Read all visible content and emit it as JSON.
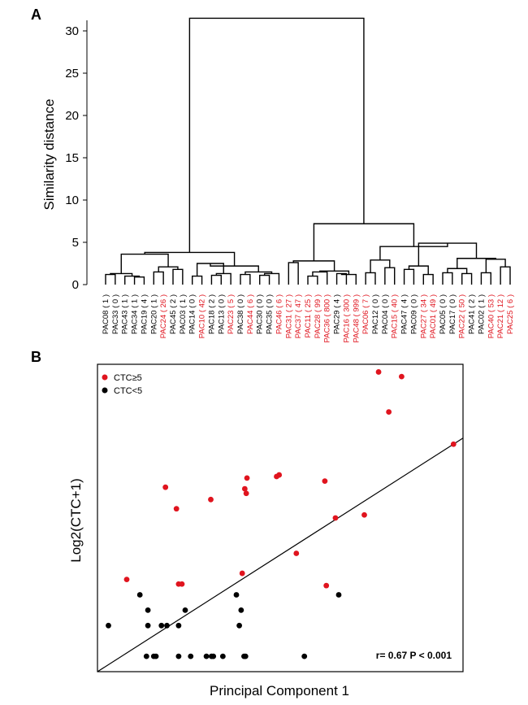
{
  "chart_data": [
    {
      "panel": "A",
      "type": "dendrogram",
      "ylabel": "Similarity distance",
      "ylim": [
        0,
        33
      ],
      "yticks": [
        0,
        5,
        10,
        15,
        20,
        25,
        30
      ],
      "colors": {
        "ctc_high": "#e0141e",
        "ctc_low": "#000000"
      },
      "leaves": [
        {
          "label": "PAC08 ( 1 )",
          "group": "low"
        },
        {
          "label": "PAC33 ( 0 )",
          "group": "low"
        },
        {
          "label": "PAC43 ( 1 )",
          "group": "low"
        },
        {
          "label": "PAC34 ( 1 )",
          "group": "low"
        },
        {
          "label": "PAC19 ( 4 )",
          "group": "low"
        },
        {
          "label": "PAC20 ( 1 )",
          "group": "low"
        },
        {
          "label": "PAC24 ( 26 )",
          "group": "high"
        },
        {
          "label": "PAC45 ( 2 )",
          "group": "low"
        },
        {
          "label": "PAC03 ( 1 )",
          "group": "low"
        },
        {
          "label": "PAC14 ( 0 )",
          "group": "low"
        },
        {
          "label": "PAC10 ( 42 )",
          "group": "high"
        },
        {
          "label": "PAC18 ( 2 )",
          "group": "low"
        },
        {
          "label": "PAC13 ( 0 )",
          "group": "low"
        },
        {
          "label": "PAC23 ( 5 )",
          "group": "high"
        },
        {
          "label": "PAC38 ( 0 )",
          "group": "low"
        },
        {
          "label": "PAC44 ( 6 )",
          "group": "high"
        },
        {
          "label": "PAC30 ( 0 )",
          "group": "low"
        },
        {
          "label": "PAC35 ( 0 )",
          "group": "low"
        },
        {
          "label": "PAC46 ( 6 )",
          "group": "high"
        },
        {
          "label": "PAC31 ( 27 )",
          "group": "high"
        },
        {
          "label": "PAC37 ( 47 )",
          "group": "high"
        },
        {
          "label": "PAC11 ( 25 )",
          "group": "high"
        },
        {
          "label": "PAC28 ( 99 )",
          "group": "high"
        },
        {
          "label": "PAC36 ( 800 )",
          "group": "high"
        },
        {
          "label": "PAC29 ( 4 )",
          "group": "low"
        },
        {
          "label": "PAC16 ( 300 )",
          "group": "high"
        },
        {
          "label": "PAC48 ( 999 )",
          "group": "high"
        },
        {
          "label": "PAC06 ( 7 )",
          "group": "high"
        },
        {
          "label": "PAC12 ( 0 )",
          "group": "low"
        },
        {
          "label": "PAC04 ( 0 )",
          "group": "low"
        },
        {
          "label": "PAC15 ( 40 )",
          "group": "high"
        },
        {
          "label": "PAC47 ( 4 )",
          "group": "low"
        },
        {
          "label": "PAC09 ( 0 )",
          "group": "low"
        },
        {
          "label": "PAC27 ( 34 )",
          "group": "high"
        },
        {
          "label": "PAC01 ( 49 )",
          "group": "high"
        },
        {
          "label": "PAC05 ( 0 )",
          "group": "low"
        },
        {
          "label": "PAC17 ( 0 )",
          "group": "low"
        },
        {
          "label": "PAC22 ( 50 )",
          "group": "high"
        },
        {
          "label": "PAC41 ( 2 )",
          "group": "low"
        },
        {
          "label": "PAC02 ( 1 )",
          "group": "low"
        },
        {
          "label": "PAC40 ( 53 )",
          "group": "high"
        },
        {
          "label": "PAC21 ( 12 )",
          "group": "high"
        },
        {
          "label": "PAC25 ( 6 )",
          "group": "high"
        }
      ],
      "merges": [
        {
          "a": "L0",
          "b": "L1",
          "h": 1.2
        },
        {
          "a": "L3",
          "b": "L4",
          "h": 0.9
        },
        {
          "a": "L2",
          "b": "M1",
          "h": 1.0
        },
        {
          "a": "M0",
          "b": "M2",
          "h": 1.3
        },
        {
          "a": "L5",
          "b": "L6",
          "h": 1.5
        },
        {
          "a": "L7",
          "b": "L8",
          "h": 1.8
        },
        {
          "a": "M4",
          "b": "M5",
          "h": 2.1
        },
        {
          "a": "M3",
          "b": "M6",
          "h": 3.6
        },
        {
          "a": "L9",
          "b": "L10",
          "h": 1.0
        },
        {
          "a": "L11",
          "b": "L12",
          "h": 1.1
        },
        {
          "a": "M9",
          "b": "L13",
          "h": 1.3
        },
        {
          "a": "M8",
          "b": "M10",
          "h": 2.5
        },
        {
          "a": "L14",
          "b": "L15",
          "h": 1.2
        },
        {
          "a": "L16",
          "b": "L17",
          "h": 1.1
        },
        {
          "a": "M13",
          "b": "L18",
          "h": 1.3
        },
        {
          "a": "M12",
          "b": "M14",
          "h": 1.5
        },
        {
          "a": "M11",
          "b": "M15",
          "h": 2.2
        },
        {
          "a": "M7",
          "b": "M16",
          "h": 3.8
        },
        {
          "a": "L19",
          "b": "L20",
          "h": 2.6
        },
        {
          "a": "L21",
          "b": "L22",
          "h": 1.0
        },
        {
          "a": "M19",
          "b": "L23",
          "h": 1.5
        },
        {
          "a": "L24",
          "b": "L25",
          "h": 1.3
        },
        {
          "a": "M21",
          "b": "L26",
          "h": 1.2
        },
        {
          "a": "M20",
          "b": "M22",
          "h": 1.6
        },
        {
          "a": "M18",
          "b": "M23",
          "h": 2.8
        },
        {
          "a": "L27",
          "b": "L28",
          "h": 1.4
        },
        {
          "a": "L29",
          "b": "L30",
          "h": 2.0
        },
        {
          "a": "M25",
          "b": "M26",
          "h": 2.9
        },
        {
          "a": "L31",
          "b": "L32",
          "h": 1.8
        },
        {
          "a": "L33",
          "b": "L34",
          "h": 1.2
        },
        {
          "a": "M28",
          "b": "M29",
          "h": 2.2
        },
        {
          "a": "L35",
          "b": "L36",
          "h": 1.4
        },
        {
          "a": "L37",
          "b": "L38",
          "h": 1.3
        },
        {
          "a": "M31",
          "b": "M32",
          "h": 1.9
        },
        {
          "a": "L39",
          "b": "L40",
          "h": 1.4
        },
        {
          "a": "L41",
          "b": "L42",
          "h": 2.1
        },
        {
          "a": "M34",
          "b": "M35",
          "h": 3.0
        },
        {
          "a": "M33",
          "b": "M36",
          "h": 3.1
        },
        {
          "a": "M30",
          "b": "M37",
          "h": 4.9
        },
        {
          "a": "M27",
          "b": "M38",
          "h": 4.5
        },
        {
          "a": "M24",
          "b": "M39",
          "h": 7.2
        },
        {
          "a": "M17",
          "b": "M40",
          "h": 31.5
        }
      ]
    },
    {
      "panel": "B",
      "type": "scatter",
      "xlabel": "Principal Component 1",
      "ylabel": "Log2(CTC+1)",
      "xlim": [
        0,
        10
      ],
      "ylim": [
        0,
        10
      ],
      "legend_position": "top-left",
      "series": [
        {
          "name": "CTC≥5",
          "color": "#e0141e",
          "points": [
            [
              0.8,
              3.0
            ],
            [
              1.86,
              6.0
            ],
            [
              2.16,
              5.3
            ],
            [
              2.22,
              2.85
            ],
            [
              2.31,
              2.85
            ],
            [
              3.1,
              5.6
            ],
            [
              3.96,
              3.2
            ],
            [
              4.03,
              5.95
            ],
            [
              4.07,
              5.8
            ],
            [
              4.09,
              6.3
            ],
            [
              4.9,
              6.35
            ],
            [
              4.97,
              6.4
            ],
            [
              5.44,
              3.85
            ],
            [
              6.22,
              6.2
            ],
            [
              6.26,
              2.8
            ],
            [
              6.51,
              5.0
            ],
            [
              7.3,
              5.1
            ],
            [
              7.69,
              9.75
            ],
            [
              7.97,
              8.45
            ],
            [
              8.32,
              9.6
            ],
            [
              9.74,
              7.4
            ]
          ]
        },
        {
          "name": "CTC<5",
          "color": "#000000",
          "points": [
            [
              0.3,
              1.5
            ],
            [
              1.16,
              2.5
            ],
            [
              1.34,
              0.5
            ],
            [
              1.38,
              2.0
            ],
            [
              1.38,
              1.5
            ],
            [
              1.54,
              0.5
            ],
            [
              1.6,
              0.5
            ],
            [
              1.75,
              1.5
            ],
            [
              1.9,
              1.5
            ],
            [
              2.22,
              1.5
            ],
            [
              2.22,
              0.5
            ],
            [
              2.4,
              2.0
            ],
            [
              2.55,
              0.5
            ],
            [
              2.98,
              0.5
            ],
            [
              3.12,
              0.5
            ],
            [
              3.17,
              0.5
            ],
            [
              3.43,
              0.5
            ],
            [
              3.8,
              2.5
            ],
            [
              3.88,
              1.5
            ],
            [
              3.93,
              2.0
            ],
            [
              4.01,
              0.5
            ],
            [
              4.05,
              0.5
            ],
            [
              5.66,
              0.5
            ],
            [
              6.6,
              2.5
            ]
          ]
        }
      ],
      "fit_line": {
        "x": [
          0,
          10
        ],
        "y": [
          0.0,
          7.6
        ]
      },
      "annotation": "r= 0.67  P < 0.001"
    }
  ]
}
